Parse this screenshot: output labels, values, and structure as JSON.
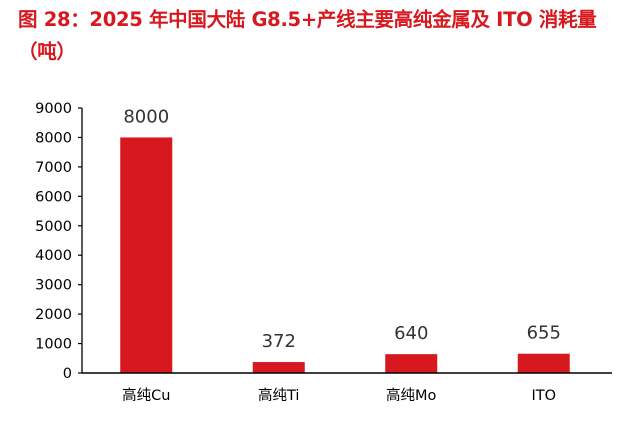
{
  "title": "图 28：2025 年中国大陆 G8.5+产线主要高纯金属及 ITO 消耗量（吨）",
  "chart_data": {
    "type": "bar",
    "title": "图 28：2025 年中国大陆 G8.5+产线主要高纯金属及 ITO 消耗量（吨）",
    "categories": [
      "高纯Cu",
      "高纯Ti",
      "高纯Mo",
      "ITO"
    ],
    "values": [
      8000,
      372,
      640,
      655
    ],
    "data_labels": [
      "8000",
      "372",
      "640",
      "655"
    ],
    "xlabel": "",
    "ylabel": "",
    "ylim": [
      0,
      9000
    ],
    "yticks": [
      "0",
      "1000",
      "2000",
      "3000",
      "4000",
      "5000",
      "6000",
      "7000",
      "8000",
      "9000"
    ],
    "grid": false,
    "legend": "none",
    "bar_color": "#d7191f"
  }
}
